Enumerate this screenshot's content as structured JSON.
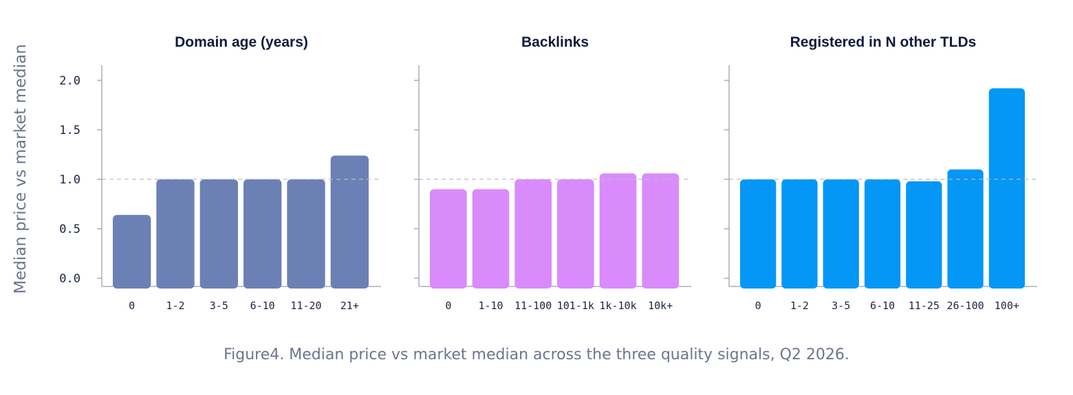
{
  "ylabel": "Median price vs market median",
  "caption": "Figure4. Median price vs market median across the three quality signals, Q2 2026.",
  "yticks": [
    "0.0",
    "0.5",
    "1.0",
    "1.5",
    "2.0"
  ],
  "chart_data": [
    {
      "type": "bar",
      "title": "Domain age (years)",
      "categories": [
        "0",
        "1-2",
        "3-5",
        "6-10",
        "11-20",
        "21+"
      ],
      "values": [
        0.64,
        1.0,
        1.0,
        1.0,
        1.0,
        1.24
      ],
      "color": "#6b81b5",
      "ylim": [
        0,
        2.15
      ],
      "reference_line": 1.0,
      "grid": false
    },
    {
      "type": "bar",
      "title": "Backlinks",
      "categories": [
        "0",
        "1-10",
        "11-100",
        "101-1k",
        "1k-10k",
        "10k+"
      ],
      "values": [
        0.9,
        0.9,
        1.0,
        1.0,
        1.06,
        1.06
      ],
      "color": "#d98bfc",
      "ylim": [
        0,
        2.15
      ],
      "reference_line": 1.0,
      "grid": false
    },
    {
      "type": "bar",
      "title": "Registered in N other TLDs",
      "categories": [
        "0",
        "1-2",
        "3-5",
        "6-10",
        "11-25",
        "26-100",
        "100+"
      ],
      "values": [
        1.0,
        1.0,
        1.0,
        1.0,
        0.98,
        1.1,
        1.92
      ],
      "color": "#0497f6",
      "ylim": [
        0,
        2.15
      ],
      "reference_line": 1.0,
      "grid": false
    }
  ]
}
